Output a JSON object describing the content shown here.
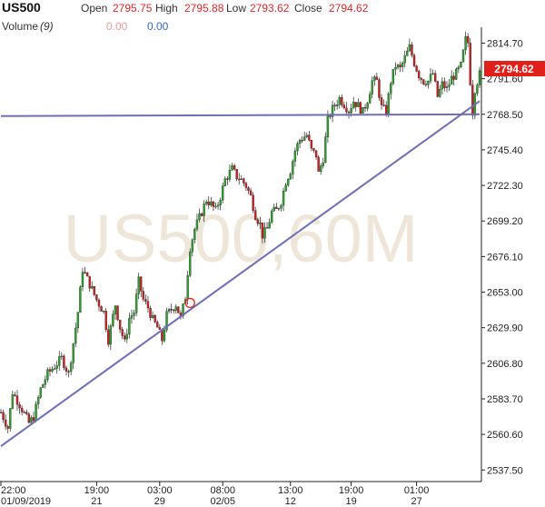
{
  "header": {
    "symbol": "US500",
    "open_label": "Open",
    "open_value": "2795.75",
    "high_label": "High",
    "high_value": "2795.88",
    "low_label": "Low",
    "low_value": "2793.62",
    "close_label": "Close",
    "close_value": "2794.62",
    "volume_label": "Volume",
    "volume_period": "(9)",
    "volume_value_a": "0.00",
    "volume_value_b": "0.00"
  },
  "watermark": "US500,60M",
  "last_price_label": "2794.62",
  "colors": {
    "up": "#2e9e2e",
    "down": "#c82020",
    "trendline": "#6e6eb4",
    "last_price_bg": "#e0201a",
    "watermark": "#efe6da",
    "axis": "#222222"
  },
  "chart_data": {
    "type": "candlestick",
    "title": "",
    "xlabel": "",
    "ylabel": "",
    "ylim": [
      2530,
      2825
    ],
    "y_ticks": [
      2537.5,
      2560.6,
      2583.7,
      2606.8,
      2629.9,
      2653.0,
      2676.1,
      2699.2,
      2722.3,
      2745.4,
      2768.5,
      2791.6,
      2814.7
    ],
    "y_tick_labels": [
      "2537.50",
      "2560.60",
      "2583.70",
      "2606.80",
      "2629.90",
      "2653.00",
      "2676.10",
      "2699.20",
      "2722.30",
      "2745.40",
      "2768.50",
      "2791.60",
      "2814.70"
    ],
    "x_ticks": [
      {
        "bar": 0,
        "time": "22:00",
        "date": "01/09/2019"
      },
      {
        "bar": 41,
        "time": "19:00",
        "date": "21"
      },
      {
        "bar": 68,
        "time": "03:00",
        "date": "29"
      },
      {
        "bar": 95,
        "time": "08:00",
        "date": "02/05"
      },
      {
        "bar": 124,
        "time": "13:00",
        "date": "12"
      },
      {
        "bar": 150,
        "time": "19:00",
        "date": "19"
      },
      {
        "bar": 178,
        "time": "01:00",
        "date": "27"
      }
    ],
    "total_bars": 205,
    "close_path": [
      [
        0,
        2575
      ],
      [
        3,
        2565
      ],
      [
        5,
        2588
      ],
      [
        8,
        2580
      ],
      [
        12,
        2568
      ],
      [
        14,
        2572
      ],
      [
        17,
        2590
      ],
      [
        20,
        2600
      ],
      [
        23,
        2605
      ],
      [
        26,
        2610
      ],
      [
        29,
        2600
      ],
      [
        31,
        2620
      ],
      [
        33,
        2640
      ],
      [
        35,
        2668
      ],
      [
        38,
        2658
      ],
      [
        41,
        2648
      ],
      [
        44,
        2640
      ],
      [
        46,
        2622
      ],
      [
        49,
        2645
      ],
      [
        51,
        2630
      ],
      [
        53,
        2620
      ],
      [
        55,
        2636
      ],
      [
        57,
        2640
      ],
      [
        59,
        2660
      ],
      [
        61,
        2648
      ],
      [
        63,
        2643
      ],
      [
        65,
        2635
      ],
      [
        67,
        2630
      ],
      [
        69,
        2622
      ],
      [
        71,
        2638
      ],
      [
        73,
        2642
      ],
      [
        75,
        2645
      ],
      [
        77,
        2636
      ],
      [
        79,
        2650
      ],
      [
        81,
        2682
      ],
      [
        83,
        2694
      ],
      [
        86,
        2705
      ],
      [
        88,
        2713
      ],
      [
        90,
        2710
      ],
      [
        92,
        2706
      ],
      [
        94,
        2715
      ],
      [
        96,
        2726
      ],
      [
        99,
        2733
      ],
      [
        101,
        2728
      ],
      [
        103,
        2726
      ],
      [
        105,
        2722
      ],
      [
        107,
        2715
      ],
      [
        109,
        2703
      ],
      [
        111,
        2697
      ],
      [
        112,
        2690
      ],
      [
        114,
        2694
      ],
      [
        116,
        2705
      ],
      [
        118,
        2706
      ],
      [
        120,
        2712
      ],
      [
        122,
        2725
      ],
      [
        124,
        2732
      ],
      [
        126,
        2745
      ],
      [
        128,
        2752
      ],
      [
        131,
        2755
      ],
      [
        133,
        2745
      ],
      [
        135,
        2742
      ],
      [
        136,
        2730
      ],
      [
        138,
        2740
      ],
      [
        140,
        2765
      ],
      [
        142,
        2772
      ],
      [
        145,
        2779
      ],
      [
        147,
        2775
      ],
      [
        149,
        2771
      ],
      [
        151,
        2777
      ],
      [
        153,
        2774
      ],
      [
        155,
        2770
      ],
      [
        157,
        2778
      ],
      [
        159,
        2790
      ],
      [
        161,
        2790
      ],
      [
        163,
        2773
      ],
      [
        165,
        2770
      ],
      [
        167,
        2790
      ],
      [
        169,
        2800
      ],
      [
        171,
        2798
      ],
      [
        173,
        2805
      ],
      [
        175,
        2812
      ],
      [
        177,
        2802
      ],
      [
        179,
        2794
      ],
      [
        181,
        2790
      ],
      [
        183,
        2790
      ],
      [
        185,
        2795
      ],
      [
        187,
        2780
      ],
      [
        189,
        2788
      ],
      [
        191,
        2785
      ],
      [
        193,
        2792
      ],
      [
        195,
        2795
      ],
      [
        197,
        2800
      ],
      [
        199,
        2817
      ],
      [
        200,
        2815
      ],
      [
        201,
        2790
      ],
      [
        202,
        2770
      ],
      [
        203,
        2785
      ],
      [
        205,
        2794.62
      ]
    ],
    "horizontal_line": {
      "from_bar": 0,
      "to_bar": 205,
      "y_start": 2767.3,
      "y_end": 2768.5
    },
    "trend_line": {
      "from_bar": 0,
      "to_bar": 205,
      "y_start": 2553.0,
      "y_end": 2777.0
    },
    "marker": {
      "bar": 81,
      "y": 2646.0
    },
    "last_price": 2794.62
  }
}
